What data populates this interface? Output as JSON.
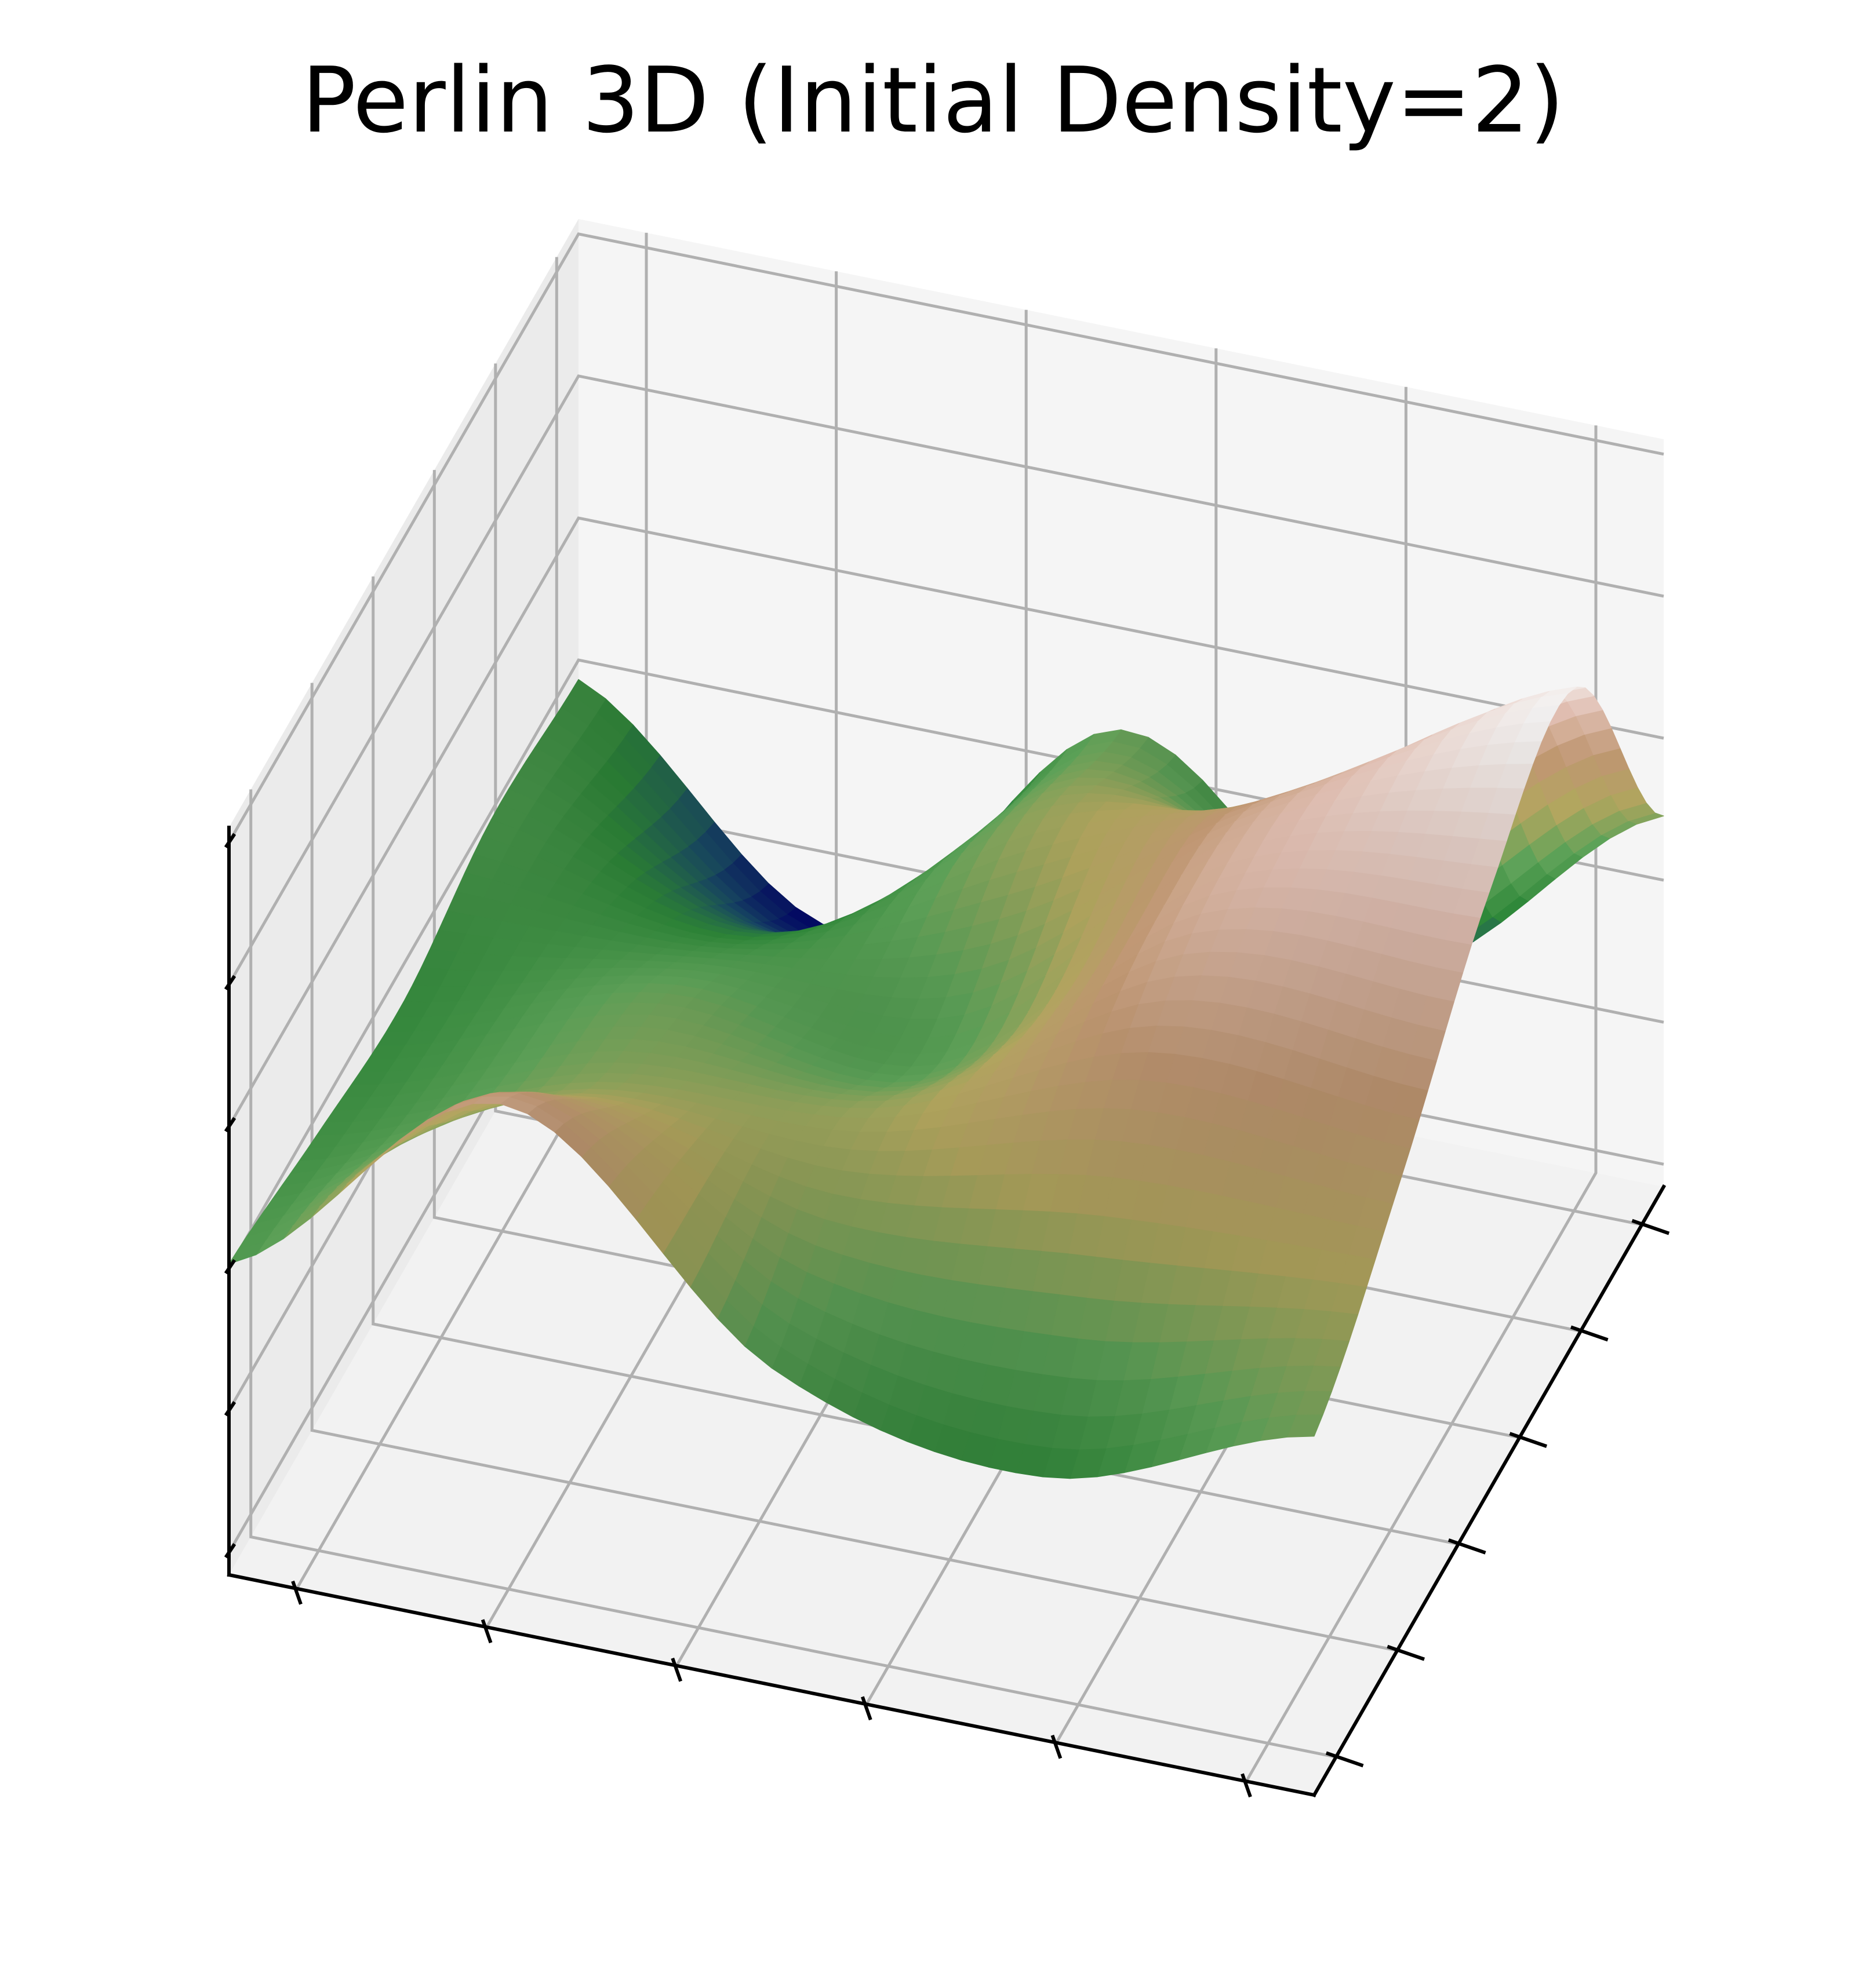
{
  "figure": {
    "title": "Perlin 3D (Initial Density=2)"
  },
  "chart_data": {
    "type": "surface",
    "title": "Perlin 3D (Initial Density=2)",
    "xlabel": "",
    "ylabel": "",
    "zlabel": "",
    "tick_labels_shown": false,
    "grid": true,
    "colormap": "gist_earth",
    "colormap_stops": [
      "#00006d",
      "#1a4d6a",
      "#2f8a3a",
      "#5fa55a",
      "#b5a960",
      "#c49a74",
      "#e6c3b6",
      "#ffffff"
    ],
    "grid_size": [
      5,
      5
    ],
    "grid_x": [
      0,
      0.25,
      0.5,
      0.75,
      1
    ],
    "grid_y": [
      0,
      0.25,
      0.5,
      0.75,
      1
    ],
    "heights": [
      [
        0.42,
        0.78,
        0.43,
        0.34,
        0.5
      ],
      [
        0.38,
        0.55,
        0.57,
        0.7,
        0.68
      ],
      [
        0.35,
        0.47,
        0.45,
        0.83,
        0.9
      ],
      [
        0.4,
        0.3,
        0.56,
        0.72,
        0.99
      ],
      [
        0.38,
        0.05,
        0.48,
        0.18,
        0.52
      ]
    ],
    "xlim": [
      0,
      1
    ],
    "ylim": [
      0,
      1
    ],
    "zlim": [
      0,
      1
    ]
  }
}
